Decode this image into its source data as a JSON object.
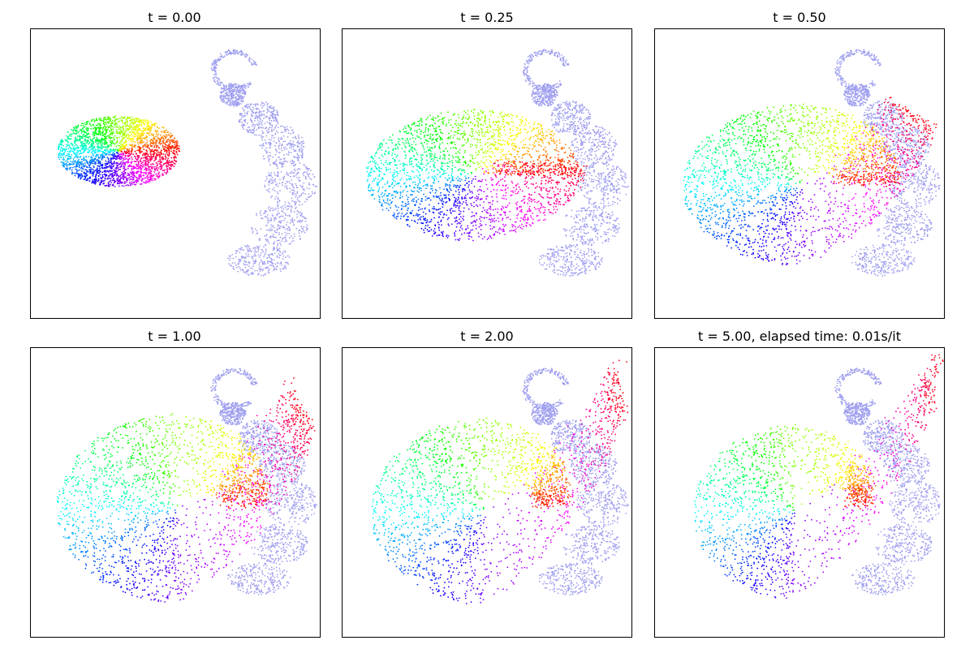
{
  "figure": {
    "background": "#ffffff"
  },
  "chart_data": [
    {
      "type": "scatter",
      "title": "t = 0.00",
      "xlabel": "",
      "ylabel": "",
      "grid": false,
      "ticks": "none",
      "colormap": "hsv (point colour encodes position in source ellipse)",
      "target_color": "#9f9ff0",
      "source": {
        "shape": "ellipse",
        "center": [
          3.06,
          5.75
        ],
        "semi_axes": [
          2.11,
          1.22
        ],
        "stretch": 0.0,
        "spread": 1.0
      },
      "target": {
        "shape": "spiral blob with loop at top",
        "visible": true
      }
    },
    {
      "type": "scatter",
      "title": "t = 0.25",
      "xlabel": "",
      "ylabel": "",
      "grid": false,
      "ticks": "none",
      "colormap": "hsv (point colour encodes position in source ellipse)",
      "target_color": "#9f9ff0",
      "source": {
        "shape": "ellipse",
        "center": [
          4.58,
          4.92
        ],
        "semi_axes": [
          3.75,
          2.28
        ],
        "stretch": 0.1,
        "spread": 1.0
      },
      "target": {
        "shape": "spiral blob with loop at top",
        "visible": true
      }
    },
    {
      "type": "scatter",
      "title": "t = 0.50",
      "xlabel": "",
      "ylabel": "",
      "grid": false,
      "ticks": "none",
      "colormap": "hsv (point colour encodes position in source ellipse)",
      "target_color": "#9f9ff0",
      "source": {
        "shape": "ellipse",
        "center": [
          5.14,
          4.58
        ],
        "semi_axes": [
          4.17,
          2.81
        ],
        "stretch": 0.55,
        "spread": 1.0
      },
      "target": {
        "shape": "spiral blob with loop at top",
        "visible": true
      }
    },
    {
      "type": "scatter",
      "title": "t = 1.00",
      "xlabel": "",
      "ylabel": "",
      "grid": false,
      "ticks": "none",
      "colormap": "hsv (point colour encodes position in source ellipse)",
      "target_color": "#9f9ff0",
      "source": {
        "shape": "ellipse",
        "center": [
          5.14,
          4.44
        ],
        "semi_axes": [
          4.39,
          3.39
        ],
        "stretch": 0.75,
        "spread": 0.85
      },
      "target": {
        "shape": "spiral blob with loop at top",
        "visible": true
      }
    },
    {
      "type": "scatter",
      "title": "t = 2.00",
      "xlabel": "",
      "ylabel": "",
      "grid": false,
      "ticks": "none",
      "colormap": "hsv (point colour encodes position in source ellipse)",
      "target_color": "#9f9ff0",
      "source": {
        "shape": "ellipse",
        "center": [
          5.0,
          4.31
        ],
        "semi_axes": [
          4.44,
          3.61
        ],
        "stretch": 0.9,
        "spread": 0.6
      },
      "target": {
        "shape": "spiral blob with loop at top",
        "visible": true
      }
    },
    {
      "type": "scatter",
      "title": "t = 5.00, elapsed time: 0.01s/it",
      "xlabel": "",
      "ylabel": "",
      "grid": false,
      "ticks": "none",
      "colormap": "hsv (point colour encodes position in source ellipse)",
      "target_color": "#9f9ff0",
      "source": {
        "shape": "ellipse",
        "center": [
          4.86,
          4.31
        ],
        "semi_axes": [
          4.19,
          3.61
        ],
        "stretch": 1.0,
        "spread": 0.35
      },
      "target": {
        "shape": "spiral blob with loop at top",
        "visible": true
      }
    }
  ]
}
